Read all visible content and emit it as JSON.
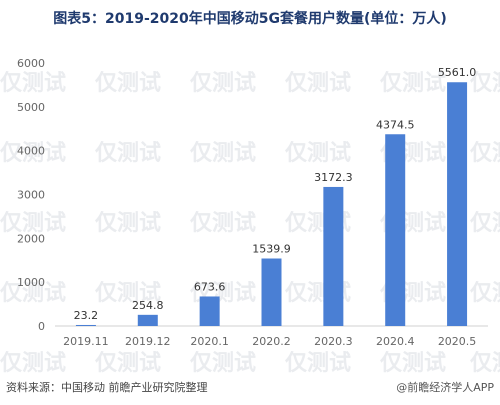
{
  "title": "图表5：2019-2020年中国移动5G套餐用户数量(单位：万人)",
  "source": "资料来源：中国移动  前瞻产业研究院整理",
  "brand": "@前瞻经济学人APP",
  "watermark_text": "仅测试",
  "colors": {
    "bar": "#4a7fd4",
    "title": "#1f3a6e",
    "axis": "#d0d0d0"
  },
  "chart_data": {
    "type": "bar",
    "categories": [
      "2019.11",
      "2019.12",
      "2020.1",
      "2020.2",
      "2020.3",
      "2020.4",
      "2020.5"
    ],
    "values": [
      23.2,
      254.8,
      673.6,
      1539.9,
      3172.3,
      4374.5,
      5561.0
    ],
    "value_labels": [
      "23.2",
      "254.8",
      "673.6",
      "1539.9",
      "3172.3",
      "4374.5",
      "5561.0"
    ],
    "y_ticks": [
      0,
      1000,
      2000,
      3000,
      4000,
      5000,
      6000
    ],
    "ylim": [
      0,
      6000
    ],
    "grid": false,
    "legend": "none"
  }
}
